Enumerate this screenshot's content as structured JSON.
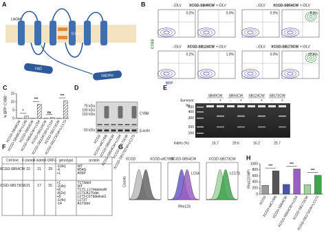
{
  "panel_a": {
    "label": "A",
    "domains": [
      "LAGM",
      "B-loop",
      "D-loop"
    ],
    "cytosolic": [
      "FAD",
      "NADPH"
    ]
  },
  "panel_b": {
    "label": "B",
    "y_axis": "CYBB",
    "x_axis": "BFP",
    "pairs": [
      {
        "cell_line": "XCGD-SB49CW",
        "minus": "- iDLV",
        "plus": "+ iDLV",
        "values": [
          "0.2%",
          "0.0%"
        ]
      },
      {
        "cell_line": "XCGD-SB54CW",
        "minus": "- iDLV",
        "plus": "+ iDLV",
        "values": [
          "0.0%",
          "8.3%"
        ]
      },
      {
        "cell_line": "XCGD-SB124CW",
        "minus": "- iDLV",
        "plus": "+ iDLV",
        "values": [
          "0.2%",
          "1.0%"
        ]
      },
      {
        "cell_line": "XCGD-SB173CW",
        "minus": "- iDLV",
        "plus": "+ iDLV",
        "values": [
          "0.0%",
          "10.6%"
        ]
      }
    ]
  },
  "chart_data": [
    {
      "type": "bar",
      "panel_label": "C",
      "y_label": "% BFP⁺CYBB⁺",
      "categories": [
        "XCGD-SB49CW",
        "XCGD-SB49CW+LC49",
        "XCGD-SB54CW",
        "XCGD-SB54CW+LC54",
        "XCGD-SB124CW",
        "XCGD-SB124CW+LC124",
        "XCGD-SB173CW",
        "XCGD-SB173CW+LC173"
      ],
      "values": [
        0.1,
        1.6,
        0.1,
        8.6,
        0.1,
        0.5,
        0.1,
        10.8
      ],
      "hatched": [
        false,
        true,
        false,
        true,
        false,
        true,
        false,
        true
      ],
      "ylim": [
        0,
        15
      ],
      "yticks": [
        0,
        5,
        10,
        15
      ],
      "annotations": [
        "*",
        "***",
        "ns",
        "***"
      ]
    },
    {
      "type": "bar",
      "panel_label": "H",
      "y_label": "Rho123 MFI",
      "categories": [
        "XCGD",
        "XCGD-wtCYBB",
        "XCGD-SB54CW",
        "XCGD-SB54CW+LC54",
        "XCGD-SB173CW",
        "XCGD-SB173CW+LC173"
      ],
      "values": [
        290,
        770,
        320,
        830,
        310,
        620
      ],
      "colors": [
        "#9a9a9a",
        "#555555",
        "#4a55a8",
        "#9b5fc0",
        "#9fd39a",
        "#3fa34d"
      ],
      "ylim": [
        0,
        1000
      ],
      "yticks": [
        0,
        200,
        400,
        600,
        800,
        1000
      ],
      "annotations": [
        "***",
        "***",
        "***"
      ]
    }
  ],
  "panel_d": {
    "label": "D",
    "markers": [
      "75 kDa",
      "100 kDa",
      "150 kDa"
    ],
    "loading_marker": "50 kDa",
    "target": "CYBB",
    "loading": "β-actin",
    "lanes": [
      "XCGD",
      "XCGD-wtCYBB",
      "XCGD-SB54CW",
      "XCGD-SB54CW+LC54",
      "XCGD-SB173CW",
      "XCGD-SB173CW+LC173"
    ]
  },
  "panel_e": {
    "label": "E",
    "samples": [
      "SB49CW",
      "SB54CW",
      "SB124CW",
      "SB173CW"
    ],
    "surveyor_label": "Surveyor",
    "treatment": [
      "-",
      "+",
      "-",
      "+",
      "-",
      "+",
      "-",
      "+"
    ],
    "bp_label": "bp",
    "ladder": [
      500,
      400,
      300,
      200,
      150
    ],
    "indels_label": "Indels (%)",
    "indels": [
      16.7,
      29.6,
      16.2,
      25.7
    ]
  },
  "panel_f": {
    "label": "F",
    "table": {
      "header": [
        "Cell line",
        "# clones",
        "# indels",
        "# ORFs",
        "genotype",
        "protein"
      ],
      "rows": [
        [
          "XCGD-SB54CW",
          "22",
          "21",
          "29",
          [
            "-1(4x)",
            "-4",
            "+1"
          ],
          [
            "WT",
            "R54G",
            "A55P"
          ]
        ],
        [
          "XCGD-SB173CW",
          "21",
          "17",
          "15",
          [
            "+1",
            "-2(4x)",
            "+6",
            "-8(2x)",
            "+8",
            "-1(4x)",
            "-14"
          ],
          [
            "T173delI",
            "WT",
            "T173_L174delinsM",
            "L173-A175del",
            "L173-D179delinsG",
            "L173T",
            "A173del"
          ]
        ]
      ]
    }
  },
  "panel_g": {
    "label": "G",
    "y_axis": "Counts",
    "x_axis": "Rho123",
    "plots": [
      {
        "titles": [
          "XCGD",
          "XCGD-wtCYBB"
        ]
      },
      {
        "titles": [
          "XCGD-SB54CW"
        ],
        "annotation": "LC54"
      },
      {
        "titles": [
          "XCGD-SB173CW"
        ],
        "annotation": "LC173"
      }
    ]
  }
}
